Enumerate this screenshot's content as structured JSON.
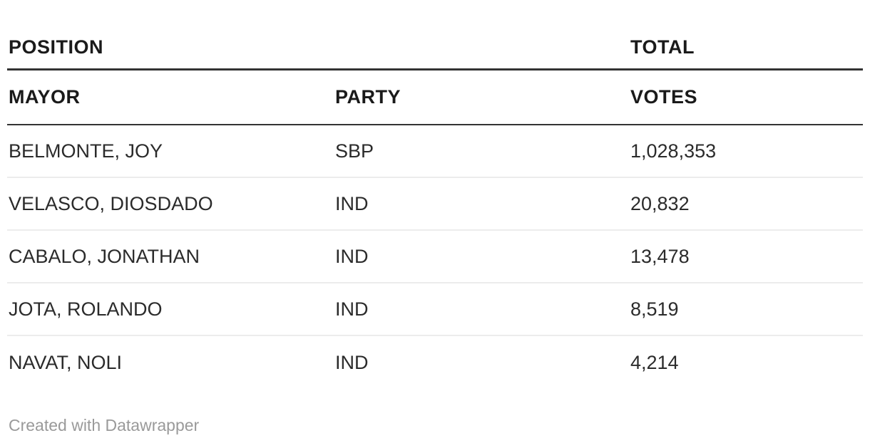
{
  "table": {
    "group_header": {
      "left": "POSITION",
      "right": "TOTAL"
    },
    "column_headers": {
      "mayor": "MAYOR",
      "party": "PARTY",
      "votes": "VOTES"
    },
    "rows": [
      {
        "name": "BELMONTE, JOY",
        "party": "SBP",
        "votes": "1,028,353"
      },
      {
        "name": "VELASCO, DIOSDADO",
        "party": "IND",
        "votes": "20,832"
      },
      {
        "name": "CABALO, JONATHAN",
        "party": "IND",
        "votes": "13,478"
      },
      {
        "name": "JOTA, ROLANDO",
        "party": "IND",
        "votes": "8,519"
      },
      {
        "name": "NAVAT, NOLI",
        "party": "IND",
        "votes": "4,214"
      }
    ]
  },
  "footer": {
    "attribution": "Created with Datawrapper"
  },
  "colors": {
    "background": "#ffffff",
    "header_text": "#1a1a1a",
    "body_text": "#2b2b2b",
    "rule_dark": "#333333",
    "row_divider": "#ececec",
    "attribution_text": "#9a9a9a"
  },
  "chart_data": {
    "type": "table",
    "title": "",
    "group_headers": [
      "POSITION",
      "TOTAL"
    ],
    "columns": [
      "MAYOR",
      "PARTY",
      "VOTES"
    ],
    "rows": [
      [
        "BELMONTE, JOY",
        "SBP",
        1028353
      ],
      [
        "VELASCO, DIOSDADO",
        "IND",
        20832
      ],
      [
        "CABALO, JONATHAN",
        "IND",
        13478
      ],
      [
        "JOTA, ROLANDO",
        "IND",
        8519
      ],
      [
        "NAVAT, NOLI",
        "IND",
        4214
      ]
    ],
    "attribution": "Created with Datawrapper"
  }
}
